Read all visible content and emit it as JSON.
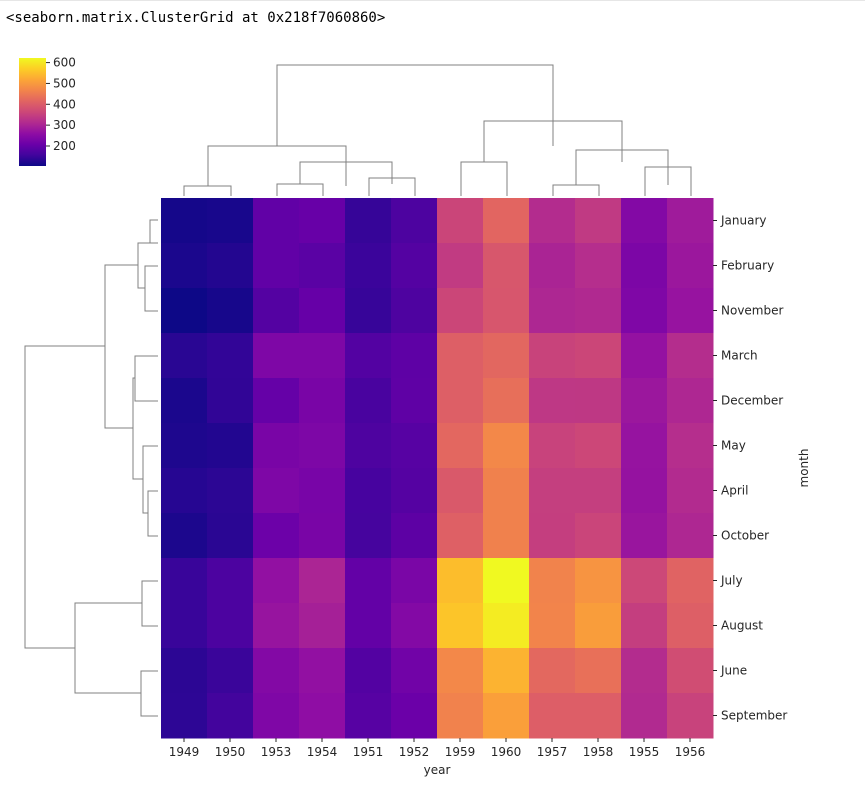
{
  "output": {
    "repr_text": "<seaborn.matrix.ClusterGrid at 0x218f7060860>"
  },
  "chart_data": {
    "type": "heatmap",
    "subtype": "clustermap",
    "title": "",
    "xlabel": "year",
    "ylabel": "month",
    "colormap": "plasma",
    "colorbar": {
      "ticks": [
        200,
        300,
        400,
        500,
        600
      ],
      "vmin": 104,
      "vmax": 622,
      "placement": "top-left"
    },
    "x_order": [
      "1949",
      "1950",
      "1953",
      "1954",
      "1951",
      "1952",
      "1959",
      "1960",
      "1957",
      "1958",
      "1955",
      "1956"
    ],
    "y_order": [
      "January",
      "February",
      "November",
      "March",
      "December",
      "May",
      "April",
      "October",
      "July",
      "August",
      "June",
      "September"
    ],
    "values": [
      [
        112,
        115,
        196,
        204,
        145,
        171,
        360,
        417,
        315,
        340,
        242,
        284
      ],
      [
        118,
        126,
        196,
        188,
        150,
        180,
        342,
        391,
        301,
        318,
        233,
        277
      ],
      [
        104,
        114,
        180,
        203,
        146,
        172,
        362,
        390,
        305,
        310,
        237,
        271
      ],
      [
        132,
        141,
        236,
        235,
        178,
        193,
        406,
        419,
        356,
        362,
        267,
        317
      ],
      [
        118,
        140,
        201,
        229,
        166,
        194,
        405,
        432,
        336,
        337,
        278,
        306
      ],
      [
        121,
        125,
        229,
        234,
        172,
        183,
        420,
        472,
        355,
        363,
        270,
        318
      ],
      [
        129,
        135,
        235,
        227,
        163,
        181,
        396,
        461,
        348,
        348,
        269,
        313
      ],
      [
        119,
        133,
        211,
        229,
        162,
        191,
        407,
        461,
        347,
        359,
        274,
        306
      ],
      [
        148,
        170,
        264,
        302,
        199,
        230,
        548,
        622,
        465,
        491,
        364,
        413
      ],
      [
        148,
        170,
        272,
        293,
        199,
        242,
        559,
        606,
        467,
        505,
        347,
        405
      ],
      [
        135,
        149,
        243,
        264,
        178,
        218,
        472,
        535,
        422,
        435,
        315,
        374
      ],
      [
        136,
        158,
        237,
        259,
        184,
        209,
        463,
        508,
        404,
        404,
        312,
        355
      ]
    ],
    "grid": false
  }
}
